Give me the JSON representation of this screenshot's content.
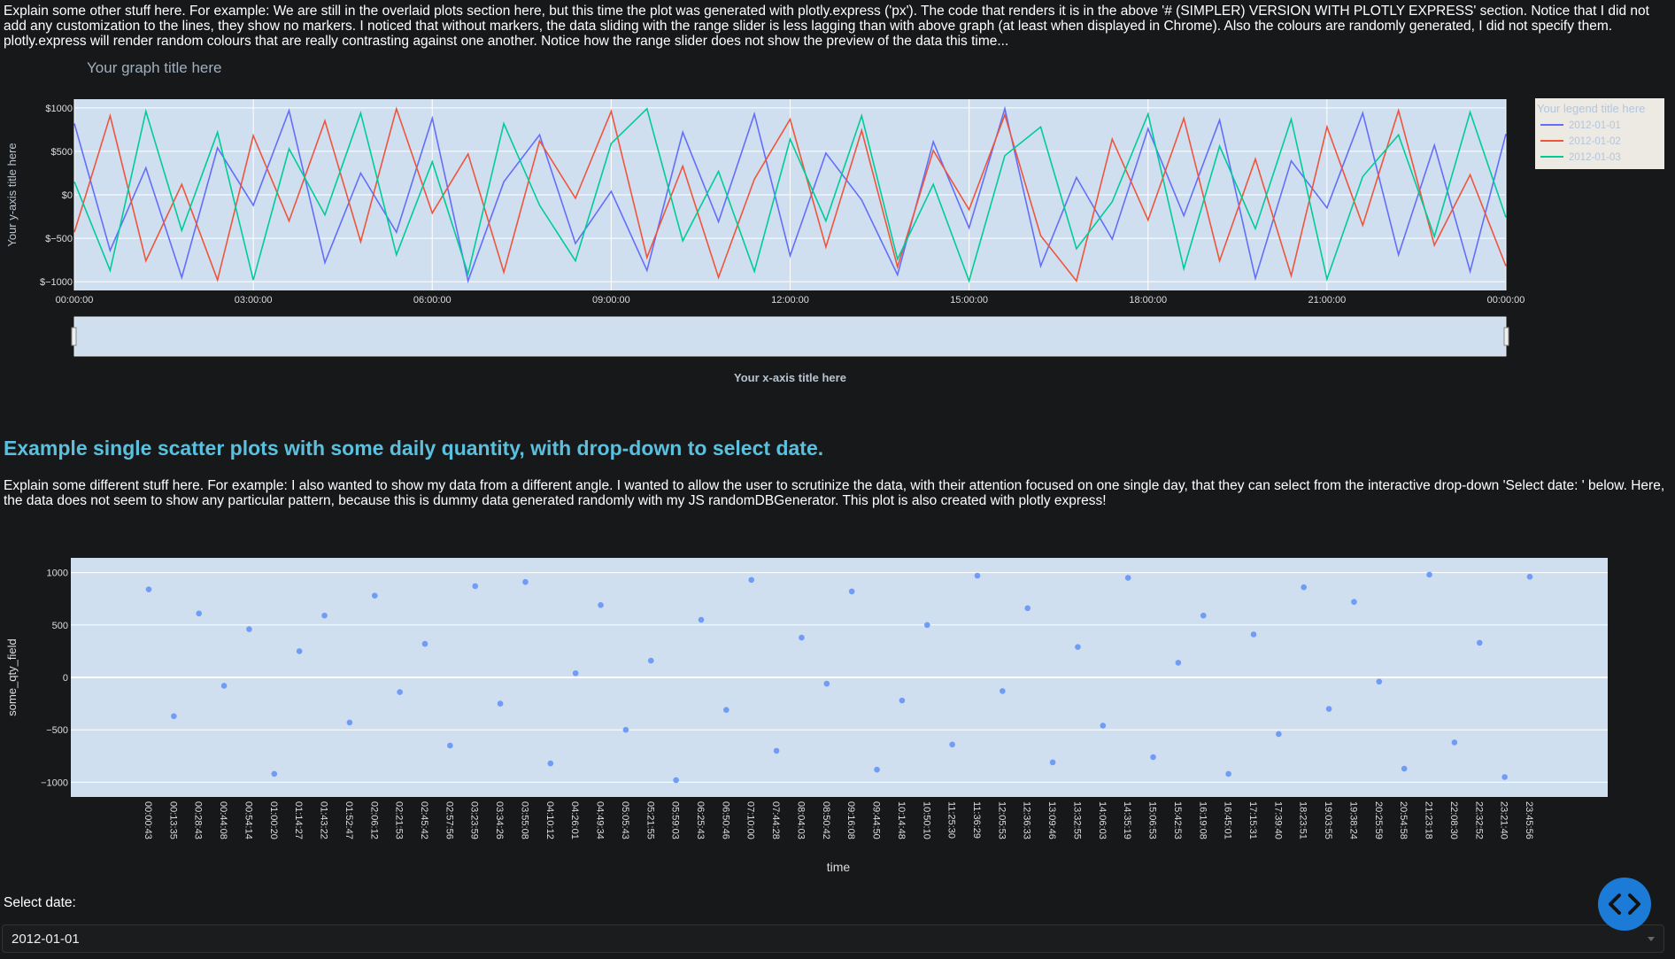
{
  "page": {
    "intro": "Explain some other stuff here. For example: We are still in the overlaid plots section here, but this time the plot was generated with plotly.express ('px'). The code that renders it is in the above '# (SIMPLER) VERSION WITH PLOTLY EXPRESS' section. Notice that I did not add any customization to the lines, they show no markers. I noticed that without markers, the data sliding with the range slider is less lagging than with above graph (at least when displayed in Chrome). Also the colours are randomly generated, I did not specify them. plotly.express will render random colours that are really contrasting against one another. Notice how the range slider does not show the preview of the data this time...",
    "heading": "Example single scatter plots with some daily quantity, with drop-down to select date.",
    "description": "Explain some different stuff here. For example: I also wanted to show my data from a different angle. I wanted to allow the user to scrutinize the data, with their attention focused on one single day, that they can select from the interactive drop-down 'Select date: ' below. Here, the data does not seem to show any particular pattern, because this is dummy data generated randomly with my JS randomDBGenerator. This plot is also created with plotly express!",
    "select_label": "Select date:",
    "select_value": "2012-01-01"
  },
  "chart_data": [
    {
      "type": "line",
      "title": "Your graph title here",
      "x_label": "Your x-axis title here",
      "y_label": "Your y-axis title here",
      "legend_title": "Your legend title here",
      "legend_position": "right",
      "grid": true,
      "x": [
        0,
        0.6,
        1.2,
        1.8,
        2.4,
        3,
        3.6,
        4.2,
        4.8,
        5.4,
        6,
        6.6,
        7.2,
        7.8,
        8.4,
        9,
        9.6,
        10.2,
        10.8,
        11.4,
        12,
        12.6,
        13.2,
        13.8,
        14.4,
        15,
        15.6,
        16.2,
        16.8,
        17.4,
        18,
        18.6,
        19.2,
        19.8,
        20.4,
        21,
        21.6,
        22.2,
        22.8,
        23.4,
        24
      ],
      "xlim": [
        0,
        24
      ],
      "xticks": [
        {
          "value": 0,
          "label": "00:00:00"
        },
        {
          "value": 3,
          "label": "03:00:00"
        },
        {
          "value": 6,
          "label": "06:00:00"
        },
        {
          "value": 9,
          "label": "09:00:00"
        },
        {
          "value": 12,
          "label": "12:00:00"
        },
        {
          "value": 15,
          "label": "15:00:00"
        },
        {
          "value": 18,
          "label": "18:00:00"
        },
        {
          "value": 21,
          "label": "21:00:00"
        },
        {
          "value": 24,
          "label": "00:00:00"
        }
      ],
      "ylim": [
        -1100,
        1100
      ],
      "yticks": [
        {
          "value": 1000,
          "label": "$1000"
        },
        {
          "value": 500,
          "label": "$500"
        },
        {
          "value": 0,
          "label": "$0"
        },
        {
          "value": -500,
          "label": "$−500"
        },
        {
          "value": -1000,
          "label": "$−1000"
        }
      ],
      "series": [
        {
          "name": "2012-01-01",
          "color": "#636efa",
          "values": [
            820,
            -640,
            310,
            -950,
            540,
            -120,
            970,
            -780,
            250,
            -430,
            880,
            -990,
            150,
            690,
            -560,
            40,
            -870,
            720,
            -310,
            930,
            -700,
            480,
            -60,
            -920,
            610,
            -380,
            990,
            -820,
            200,
            -510,
            760,
            -240,
            860,
            -960,
            390,
            -150,
            940,
            -690,
            570,
            -880,
            700
          ]
        },
        {
          "name": "2012-01-02",
          "color": "#ef553b",
          "values": [
            -430,
            910,
            -760,
            120,
            -980,
            680,
            -300,
            850,
            -540,
            990,
            -210,
            470,
            -890,
            620,
            -40,
            960,
            -720,
            330,
            -950,
            180,
            870,
            -600,
            740,
            -830,
            510,
            -170,
            920,
            -470,
            -990,
            640,
            -290,
            880,
            -760,
            410,
            -930,
            780,
            -350,
            970,
            -580,
            230,
            -820
          ]
        },
        {
          "name": "2012-01-03",
          "color": "#00cc96",
          "values": [
            150,
            -870,
            960,
            -410,
            720,
            -980,
            530,
            -230,
            940,
            -690,
            380,
            -910,
            820,
            -120,
            -760,
            590,
            990,
            -530,
            270,
            -880,
            640,
            -300,
            910,
            -740,
            120,
            -990,
            450,
            780,
            -620,
            -80,
            930,
            -850,
            560,
            -390,
            870,
            -970,
            210,
            690,
            -480,
            950,
            -260
          ]
        }
      ]
    },
    {
      "type": "scatter",
      "x_label": "time",
      "y_label": "some_qty_field",
      "color": "#6f9cf5",
      "grid": true,
      "categories": [
        "00:00:43",
        "00:13:35",
        "00:28:43",
        "00:44:08",
        "00:54:14",
        "01:00:20",
        "01:14:27",
        "01:43:22",
        "01:52:47",
        "02:06:12",
        "02:21:53",
        "02:45:42",
        "02:57:56",
        "03:23:59",
        "03:34:26",
        "03:55:08",
        "04:10:12",
        "04:26:01",
        "04:49:34",
        "05:05:43",
        "05:21:55",
        "05:59:03",
        "06:25:43",
        "06:50:46",
        "07:10:00",
        "07:44:28",
        "08:04:03",
        "08:50:42",
        "09:16:08",
        "09:44:50",
        "10:14:48",
        "10:50:10",
        "11:25:30",
        "11:36:29",
        "12:05:53",
        "12:36:33",
        "13:09:46",
        "13:32:55",
        "14:06:03",
        "14:35:19",
        "15:06:53",
        "15:42:53",
        "16:19:08",
        "16:45:01",
        "17:15:31",
        "17:39:40",
        "18:23:51",
        "19:03:55",
        "19:38:24",
        "20:25:59",
        "20:54:58",
        "21:23:18",
        "22:08:30",
        "22:32:52",
        "23:21:40",
        "23:45:56"
      ],
      "values": [
        840,
        -370,
        610,
        -80,
        460,
        -920,
        250,
        590,
        -430,
        780,
        -140,
        320,
        -650,
        870,
        -250,
        910,
        -820,
        40,
        690,
        -500,
        160,
        -980,
        550,
        -310,
        930,
        -700,
        380,
        -60,
        820,
        -880,
        -220,
        500,
        -640,
        970,
        -130,
        660,
        -810,
        290,
        -460,
        950,
        -760,
        140,
        590,
        -920,
        410,
        -540,
        860,
        -300,
        720,
        -40,
        -870,
        980,
        -620,
        330,
        -950,
        960
      ],
      "ylim": [
        -1140,
        1140
      ],
      "yticks": [
        1000,
        500,
        0,
        {
          "value": -500,
          "label": "−500"
        },
        {
          "value": -1000,
          "label": "−1000"
        }
      ]
    }
  ]
}
